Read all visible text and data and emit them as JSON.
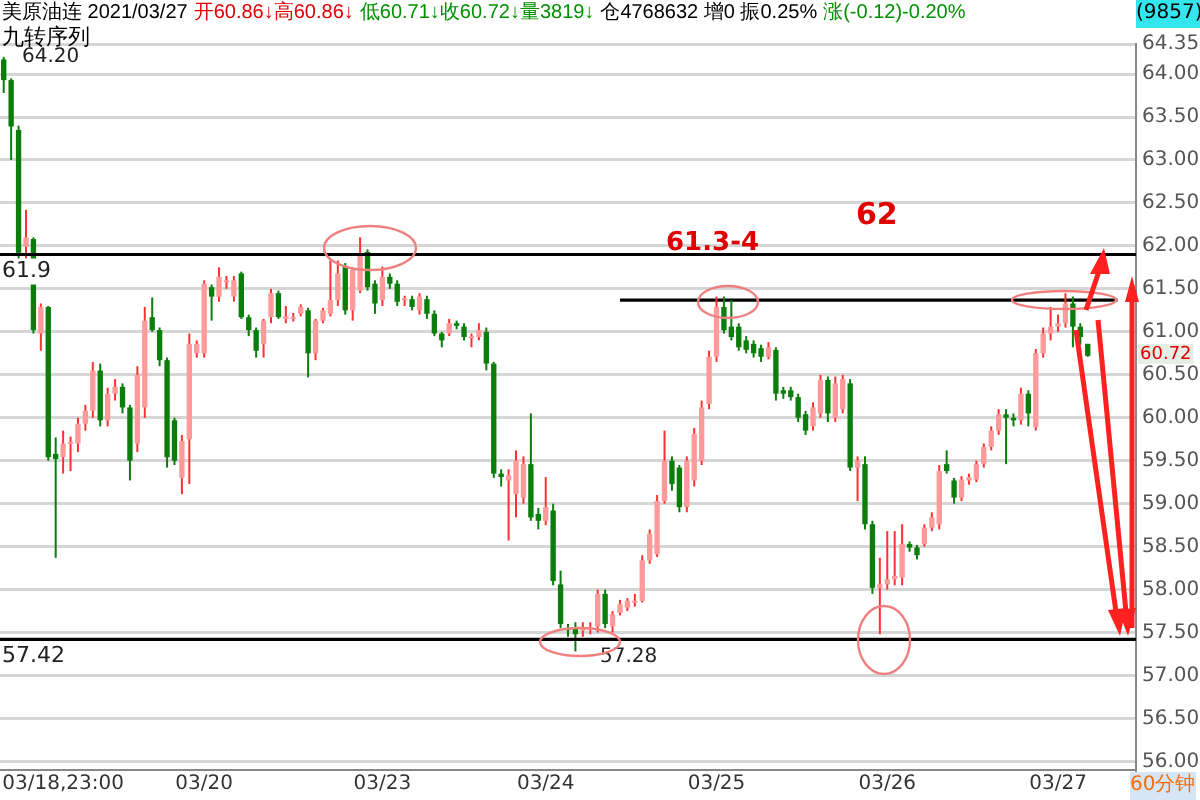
{
  "chart_data": {
    "type": "candlestick",
    "categories": [
      null,
      null,
      null,
      null,
      null,
      null,
      null,
      null,
      "03/18,23:00",
      null,
      null,
      null,
      null,
      null,
      null,
      null,
      null,
      null,
      null,
      null,
      null,
      null,
      null,
      null,
      null,
      null,
      null,
      "03/20",
      null,
      null,
      null,
      null,
      null,
      null,
      null,
      null,
      null,
      null,
      null,
      null,
      null,
      null,
      null,
      null,
      null,
      null,
      null,
      null,
      null,
      null,
      null,
      "03/23",
      null,
      null,
      null,
      null,
      null,
      null,
      null,
      null,
      null,
      null,
      null,
      null,
      null,
      null,
      null,
      null,
      null,
      null,
      null,
      null,
      null,
      "03/24",
      null,
      null,
      null,
      null,
      null,
      null,
      null,
      null,
      null,
      null,
      null,
      null,
      null,
      null,
      null,
      null,
      null,
      null,
      null,
      null,
      null,
      null,
      "03/25",
      null,
      null,
      null,
      null,
      null,
      null,
      null,
      null,
      null,
      null,
      null,
      null,
      null,
      null,
      null,
      null,
      null,
      null,
      null,
      null,
      null,
      null,
      "03/26",
      null,
      null,
      null,
      null,
      null,
      null,
      null,
      null,
      null,
      null,
      null,
      null,
      null,
      null,
      null,
      null,
      null,
      null,
      null,
      null,
      null,
      null,
      "03/27",
      null,
      null,
      null,
      null,
      null,
      null,
      null,
      null,
      null,
      null
    ],
    "ohlc": [
      [
        64.17,
        64.2,
        63.78,
        63.93
      ],
      [
        63.93,
        63.95,
        63.0,
        63.39
      ],
      [
        63.35,
        63.4,
        61.85,
        61.92
      ],
      [
        61.99,
        62.42,
        61.85,
        62.1
      ],
      [
        62.08,
        62.1,
        60.98,
        61.02
      ],
      [
        60.98,
        61.33,
        60.78,
        61.29
      ],
      [
        61.29,
        61.3,
        59.5,
        59.54
      ],
      [
        59.58,
        59.77,
        58.37,
        59.52
      ],
      [
        59.54,
        59.85,
        59.35,
        59.7
      ],
      [
        59.7,
        59.78,
        59.38,
        59.72
      ],
      [
        59.7,
        60.0,
        59.6,
        59.93
      ],
      [
        59.93,
        60.15,
        59.85,
        60.08
      ],
      [
        60.08,
        60.65,
        60.0,
        60.55
      ],
      [
        60.55,
        60.63,
        59.9,
        59.97
      ],
      [
        59.97,
        60.35,
        59.9,
        60.28
      ],
      [
        60.28,
        60.45,
        60.2,
        60.36
      ],
      [
        60.36,
        60.4,
        60.05,
        60.12
      ],
      [
        60.12,
        60.15,
        59.27,
        59.5
      ],
      [
        59.7,
        60.6,
        59.6,
        60.5
      ],
      [
        60.12,
        61.29,
        60.0,
        61.13
      ],
      [
        61.17,
        61.4,
        61.0,
        61.02
      ],
      [
        61.02,
        61.05,
        60.6,
        60.67
      ],
      [
        60.67,
        60.7,
        59.42,
        59.54
      ],
      [
        59.97,
        60.0,
        59.45,
        59.5
      ],
      [
        59.3,
        59.8,
        59.11,
        59.73
      ],
      [
        59.75,
        60.98,
        59.23,
        60.86
      ],
      [
        60.75,
        60.9,
        60.7,
        60.86
      ],
      [
        60.75,
        61.6,
        60.7,
        61.56
      ],
      [
        61.52,
        61.55,
        61.13,
        61.41
      ],
      [
        61.41,
        61.75,
        61.35,
        61.64
      ],
      [
        61.6,
        61.65,
        61.5,
        61.6
      ],
      [
        61.41,
        61.65,
        61.35,
        61.6
      ],
      [
        61.68,
        61.7,
        61.15,
        61.17
      ],
      [
        61.17,
        61.2,
        60.95,
        61.02
      ],
      [
        61.02,
        61.05,
        60.7,
        60.78
      ],
      [
        60.86,
        61.15,
        60.7,
        61.13
      ],
      [
        61.17,
        61.5,
        61.1,
        61.45
      ],
      [
        61.45,
        61.48,
        61.15,
        61.17
      ],
      [
        61.15,
        61.3,
        61.1,
        61.18
      ],
      [
        61.17,
        61.22,
        61.12,
        61.17
      ],
      [
        61.21,
        61.32,
        61.18,
        61.29
      ],
      [
        61.25,
        61.28,
        60.47,
        60.75
      ],
      [
        60.75,
        61.15,
        60.67,
        61.13
      ],
      [
        61.13,
        61.28,
        61.1,
        61.25
      ],
      [
        61.21,
        61.83,
        61.18,
        61.37
      ],
      [
        61.37,
        61.83,
        61.3,
        61.68
      ],
      [
        61.76,
        61.8,
        61.2,
        61.25
      ],
      [
        61.25,
        61.75,
        61.13,
        61.72
      ],
      [
        61.48,
        62.1,
        61.45,
        61.91
      ],
      [
        61.93,
        61.96,
        61.48,
        61.52
      ],
      [
        61.56,
        61.6,
        61.21,
        61.33
      ],
      [
        61.37,
        61.76,
        61.3,
        61.64
      ],
      [
        61.64,
        61.68,
        61.5,
        61.56
      ],
      [
        61.56,
        61.6,
        61.3,
        61.35
      ],
      [
        61.37,
        61.42,
        61.3,
        61.39
      ],
      [
        61.38,
        61.42,
        61.25,
        61.29
      ],
      [
        61.25,
        61.45,
        61.2,
        61.41
      ],
      [
        61.38,
        61.42,
        61.15,
        61.21
      ],
      [
        61.21,
        61.25,
        60.95,
        60.98
      ],
      [
        60.98,
        61.0,
        60.82,
        60.9
      ],
      [
        60.98,
        61.15,
        60.95,
        61.1
      ],
      [
        61.1,
        61.13,
        61.03,
        61.07
      ],
      [
        61.06,
        61.1,
        60.9,
        60.94
      ],
      [
        60.94,
        60.98,
        60.82,
        60.95
      ],
      [
        60.94,
        61.1,
        60.9,
        61.02
      ],
      [
        61.0,
        61.05,
        60.55,
        60.63
      ],
      [
        60.63,
        60.65,
        59.3,
        59.35
      ],
      [
        59.35,
        59.4,
        59.2,
        59.31
      ],
      [
        59.27,
        59.4,
        58.57,
        59.33
      ],
      [
        59.11,
        59.62,
        58.84,
        59.5
      ],
      [
        59.07,
        59.55,
        59.0,
        59.46
      ],
      [
        59.46,
        60.05,
        58.8,
        58.84
      ],
      [
        58.88,
        58.95,
        58.7,
        58.8
      ],
      [
        58.8,
        59.31,
        58.75,
        58.96
      ],
      [
        58.92,
        59.0,
        58.05,
        58.1
      ],
      [
        58.06,
        58.22,
        57.55,
        57.6
      ],
      [
        57.55,
        57.6,
        57.45,
        57.53
      ],
      [
        57.56,
        57.62,
        57.28,
        57.48
      ],
      [
        57.52,
        57.62,
        57.45,
        57.56
      ],
      [
        57.53,
        57.62,
        57.48,
        57.56
      ],
      [
        57.57,
        58.0,
        57.5,
        57.95
      ],
      [
        57.95,
        58.0,
        57.55,
        57.6
      ],
      [
        57.57,
        57.75,
        57.5,
        57.71
      ],
      [
        57.73,
        57.88,
        57.7,
        57.83
      ],
      [
        57.79,
        57.9,
        57.75,
        57.87
      ],
      [
        57.85,
        57.95,
        57.8,
        57.87
      ],
      [
        57.87,
        58.4,
        57.85,
        58.34
      ],
      [
        58.34,
        58.7,
        58.3,
        58.65
      ],
      [
        58.41,
        59.1,
        58.38,
        59.03
      ],
      [
        59.03,
        59.85,
        59.0,
        59.5
      ],
      [
        59.5,
        59.55,
        59.15,
        59.23
      ],
      [
        59.42,
        59.45,
        58.9,
        58.96
      ],
      [
        58.96,
        59.55,
        58.9,
        59.5
      ],
      [
        59.27,
        59.88,
        59.2,
        59.81
      ],
      [
        59.5,
        60.2,
        59.45,
        60.12
      ],
      [
        60.16,
        60.78,
        60.1,
        60.71
      ],
      [
        60.71,
        61.41,
        60.65,
        61.29
      ],
      [
        61.29,
        61.41,
        60.98,
        61.02
      ],
      [
        61.06,
        61.37,
        60.9,
        60.94
      ],
      [
        61.06,
        61.1,
        60.78,
        60.82
      ],
      [
        60.9,
        60.95,
        60.75,
        60.79
      ],
      [
        60.86,
        60.9,
        60.7,
        60.75
      ],
      [
        60.81,
        60.85,
        60.65,
        60.71
      ],
      [
        60.71,
        60.88,
        60.68,
        60.82
      ],
      [
        60.79,
        60.82,
        60.2,
        60.28
      ],
      [
        60.32,
        60.36,
        60.22,
        60.28
      ],
      [
        60.32,
        60.36,
        60.2,
        60.24
      ],
      [
        60.24,
        60.28,
        59.95,
        60.0
      ],
      [
        60.04,
        60.08,
        59.8,
        59.85
      ],
      [
        59.9,
        60.18,
        59.85,
        60.12
      ],
      [
        60.05,
        60.5,
        60.0,
        60.44
      ],
      [
        60.44,
        60.48,
        59.95,
        60.05
      ],
      [
        60.0,
        60.48,
        59.95,
        60.4
      ],
      [
        60.1,
        60.5,
        60.05,
        60.45
      ],
      [
        60.4,
        60.45,
        59.38,
        59.42
      ],
      [
        59.42,
        59.55,
        59.03,
        59.5
      ],
      [
        59.46,
        59.55,
        58.7,
        58.76
      ],
      [
        58.76,
        58.8,
        57.95,
        58.02
      ],
      [
        58.02,
        58.37,
        57.48,
        58.06
      ],
      [
        58.06,
        58.68,
        58.0,
        58.12
      ],
      [
        58.12,
        58.68,
        58.05,
        58.16
      ],
      [
        58.14,
        58.76,
        58.05,
        58.53
      ],
      [
        58.53,
        58.56,
        58.44,
        58.49
      ],
      [
        58.49,
        58.52,
        58.35,
        58.4
      ],
      [
        58.53,
        58.76,
        58.5,
        58.72
      ],
      [
        58.72,
        58.9,
        58.68,
        58.84
      ],
      [
        58.76,
        59.45,
        58.7,
        59.38
      ],
      [
        59.46,
        59.62,
        59.35,
        59.38
      ],
      [
        59.27,
        59.3,
        59.0,
        59.07
      ],
      [
        59.07,
        59.32,
        59.03,
        59.28
      ],
      [
        59.27,
        59.35,
        59.22,
        59.31
      ],
      [
        59.28,
        59.5,
        59.25,
        59.46
      ],
      [
        59.46,
        59.7,
        59.42,
        59.66
      ],
      [
        59.66,
        59.9,
        59.62,
        59.85
      ],
      [
        59.85,
        60.1,
        59.8,
        60.04
      ],
      [
        60.04,
        60.1,
        59.46,
        60.0
      ],
      [
        60.0,
        60.05,
        59.9,
        59.97
      ],
      [
        59.97,
        60.35,
        59.92,
        60.28
      ],
      [
        60.28,
        60.32,
        59.9,
        60.05
      ],
      [
        59.89,
        60.8,
        59.85,
        60.75
      ],
      [
        60.75,
        61.05,
        60.7,
        60.98
      ],
      [
        60.98,
        61.29,
        60.9,
        61.06
      ],
      [
        61.06,
        61.2,
        61.0,
        61.1
      ],
      [
        61.1,
        61.45,
        61.05,
        61.33
      ],
      [
        61.33,
        61.41,
        60.82,
        61.06
      ],
      [
        61.06,
        61.1,
        60.85,
        60.94
      ],
      [
        60.86,
        60.86,
        60.71,
        60.72
      ],
      null,
      null,
      null,
      null,
      null,
      null
    ],
    "series": [
      {
        "type": "line",
        "color": "#000000",
        "values": [
          null,
          null,
          null,
          null,
          null,
          null,
          null,
          null,
          null,
          null,
          null,
          null,
          null,
          null,
          null,
          null,
          null,
          null,
          null,
          null,
          null,
          null,
          null,
          null,
          null,
          null,
          null,
          null,
          null,
          null,
          null,
          null,
          null,
          null,
          null,
          null,
          null,
          null,
          null,
          null,
          null,
          null,
          null,
          null,
          null,
          null,
          null,
          null,
          null,
          null,
          null,
          null,
          null,
          null,
          null,
          null,
          null,
          null,
          null,
          null,
          null,
          null,
          null,
          null,
          null,
          null,
          null,
          null,
          null,
          null,
          null,
          null,
          null,
          null,
          null,
          null,
          null,
          null,
          null,
          null,
          null,
          null,
          null,
          61.37,
          61.37,
          61.37,
          61.37,
          61.37,
          61.37,
          61.37,
          61.37,
          61.37,
          61.37,
          61.37,
          61.37,
          61.37,
          61.37,
          61.37,
          61.37,
          61.37,
          61.37,
          61.37,
          61.37,
          61.37,
          61.37,
          61.37,
          61.37,
          61.37,
          61.37,
          61.37,
          61.37,
          61.37,
          61.37,
          61.37,
          61.37,
          61.37,
          61.37,
          61.37,
          61.37,
          61.37,
          61.37,
          61.37,
          61.37,
          61.37,
          61.37,
          61.37,
          61.37,
          61.37,
          61.37,
          61.37,
          61.37,
          61.37,
          61.37,
          61.37,
          61.37,
          61.37,
          61.37,
          61.37,
          61.37,
          61.37,
          61.37,
          61.37,
          61.37,
          61.37,
          61.37,
          61.37,
          61.37,
          61.37,
          61.37,
          61.37,
          61.37,
          null,
          null
        ]
      }
    ],
    "ylim": [
      55.9,
      64.35
    ],
    "yticks": [
      {
        "value": 56,
        "label": "56.00"
      },
      {
        "value": 56.5,
        "label": "56.50"
      },
      {
        "value": 57,
        "label": "57.00"
      },
      {
        "value": 57.5,
        "label": "57.50"
      },
      {
        "value": 58,
        "label": "58.00"
      },
      {
        "value": 58.5,
        "label": "58.50"
      },
      {
        "value": 59,
        "label": "59.00"
      },
      {
        "value": 59.5,
        "label": "59.50"
      },
      {
        "value": 60,
        "label": "60.00"
      },
      {
        "value": 60.5,
        "label": "60.50"
      },
      {
        "value": 61,
        "label": "61.00"
      },
      {
        "value": 61.5,
        "label": "61.50"
      },
      {
        "value": 62,
        "label": "62.00"
      },
      {
        "value": 62.5,
        "label": "62.50"
      },
      {
        "value": 63,
        "label": "63.00"
      },
      {
        "value": 63.5,
        "label": "63.50"
      },
      {
        "value": 64,
        "label": "64.00"
      },
      {
        "value": 64.35,
        "label": "64.35"
      }
    ],
    "grid": "y",
    "legend": false,
    "ref_lines": [
      {
        "axis": "y",
        "value": 61.9,
        "label": "61.9",
        "color": "#000000"
      },
      {
        "axis": "y",
        "value": 57.42,
        "label": "57.42",
        "color": "#000000"
      }
    ],
    "annotations": [
      "美原油连 2021/03/27",
      "开60.86↓高60.86↓",
      "低60.71↓收60.72↓量3819↓",
      "仓4768632 增0 振0.25%",
      "涨(-0.12)-0.20%",
      "九转序列",
      "62",
      "61.3-4",
      "(9857)",
      "60分钟",
      "64.20",
      "57.28",
      {
        "text": "60.72",
        "y": 60.72
      }
    ]
  }
}
